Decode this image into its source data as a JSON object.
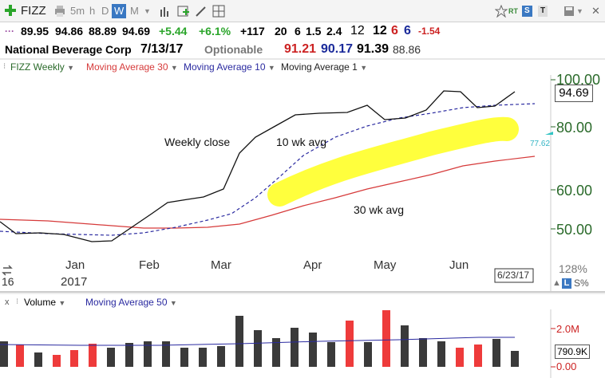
{
  "toolbar": {
    "symbol": "FIZZ",
    "timeframes": [
      "5m",
      "h",
      "D",
      "W",
      "M"
    ],
    "active_timeframe": "W",
    "rt_label": "RT",
    "s_label": "S",
    "t_label": "T"
  },
  "quote": {
    "open": "89.95",
    "high": "94.86",
    "low": "88.89",
    "close": "94.69",
    "change": "+5.44",
    "change_pct": "+6.1%",
    "v1": "+117",
    "v2": "20",
    "v3": "6",
    "v4": "1.5",
    "v5": "2.4",
    "v6": "12",
    "v7": "12",
    "v8": "6",
    "v9": "6",
    "v10": "-1.54"
  },
  "company": {
    "name": "National Beverage Corp",
    "date": "7/13/17",
    "optionable": "Optionable",
    "ma30": "91.21",
    "ma10": "90.17",
    "ma1": "91.39",
    "extra": "88.86"
  },
  "price_legend": {
    "items": [
      "FIZZ Weekly",
      "Moving Average 30",
      "Moving Average 10",
      "Moving Average 1"
    ]
  },
  "price_axis": {
    "labels": [
      "100.00",
      "80.00",
      "60.00",
      "50.00"
    ],
    "current": "94.69",
    "ma_marker": "77.62",
    "pct": "128%",
    "l_badge": "L",
    "s_pct": "S%"
  },
  "x_axis": {
    "months": [
      "Jan",
      "Feb",
      "Mar",
      "Apr",
      "May",
      "Jun"
    ],
    "year": "2017",
    "left_cut": "16",
    "date_box": "6/23/17"
  },
  "annotations": {
    "weekly_close": "Weekly close",
    "ten_wk": "10 wk avg",
    "thirty_wk": "30 wk avg"
  },
  "volume_legend": {
    "items": [
      "Volume",
      "Moving Average 50"
    ]
  },
  "volume_axis": {
    "labels": [
      "2.0M",
      "0.00"
    ],
    "current": "790.9K"
  },
  "colors": {
    "green": "#2aa52a",
    "red": "#cc2222",
    "navy": "#1a2a9a",
    "price_line": "#111111",
    "ma30": "#d63a3a",
    "ma10": "#2a2aa0",
    "highlight": "#ffff33",
    "vol_up": "#3a3a3a",
    "vol_down": "#ee3b3b"
  }
}
